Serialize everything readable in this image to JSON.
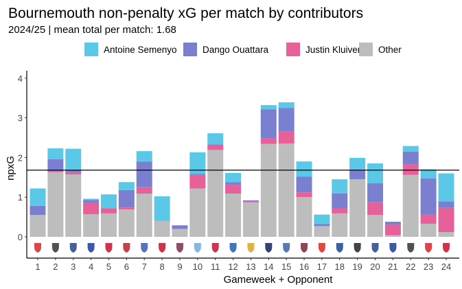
{
  "chart_data": {
    "type": "bar",
    "stacked": true,
    "title": "Bournemouth non-penalty xG per match by contributors",
    "subtitle": "2024/25 | mean total per match: 1.68",
    "xlabel": "Gameweek + Opponent",
    "ylabel": "npxG",
    "ylim": [
      0,
      4.2
    ],
    "yticks": [
      0,
      1,
      2,
      3,
      4
    ],
    "grid": false,
    "legend_position": "top",
    "reference_line": {
      "value": 1.68,
      "color": "#000000"
    },
    "categories": [
      "1",
      "2",
      "3",
      "4",
      "5",
      "6",
      "7",
      "8",
      "9",
      "10",
      "11",
      "12",
      "13",
      "14",
      "15",
      "16",
      "17",
      "18",
      "19",
      "20",
      "21",
      "22",
      "23",
      "24"
    ],
    "opponent_icons": [
      "nottingham-forest-crest-icon",
      "newcastle-crest-icon",
      "everton-crest-icon",
      "chelsea-crest-icon",
      "liverpool-crest-icon",
      "southampton-crest-icon",
      "leicester-crest-icon",
      "arsenal-crest-icon",
      "aston-villa-crest-icon",
      "man-city-crest-icon",
      "brentford-crest-icon",
      "brighton-crest-icon",
      "wolves-crest-icon",
      "tottenham-crest-icon",
      "ipswich-crest-icon",
      "west-ham-crest-icon",
      "man-united-crest-icon",
      "crystal-palace-crest-icon",
      "fulham-crest-icon",
      "everton-crest-icon",
      "chelsea-crest-icon",
      "newcastle-crest-icon",
      "nottingham-forest-crest-icon",
      "liverpool-crest-icon"
    ],
    "opponent_icon_colors": [
      "#d2262f",
      "#333333",
      "#274488",
      "#1c3c94",
      "#c8102e",
      "#b3242a",
      "#3b5bb5",
      "#c8102e",
      "#7a2e4d",
      "#6cabdd",
      "#c8102e",
      "#1d5fb3",
      "#d9a520",
      "#132257",
      "#3a64a3",
      "#7a263a",
      "#da291c",
      "#1b458f",
      "#222222",
      "#274488",
      "#1c3c94",
      "#333333",
      "#d2262f",
      "#c8102e"
    ],
    "series": [
      {
        "name": "Other",
        "color": "#bdbdbd",
        "values": [
          0.55,
          1.63,
          1.57,
          0.57,
          0.59,
          0.69,
          1.09,
          0.4,
          0.2,
          1.22,
          2.19,
          1.09,
          0.87,
          2.34,
          2.35,
          1.0,
          0.27,
          0.59,
          1.45,
          0.55,
          0.04,
          1.56,
          0.33,
          0.12
        ]
      },
      {
        "name": "Justin Kluivert",
        "color": "#e8609a",
        "values": [
          0,
          0.03,
          0.05,
          0.28,
          0.13,
          0.05,
          0.16,
          0,
          0,
          0.34,
          0.12,
          0.21,
          0.03,
          0.15,
          0.3,
          0.12,
          0,
          0.12,
          0,
          0.32,
          0.27,
          0.26,
          0.23,
          0.61
        ]
      },
      {
        "name": "Dango Ouattara",
        "color": "#7b7fd0",
        "values": [
          0.23,
          0.3,
          0.08,
          0.08,
          0,
          0.44,
          0.65,
          0,
          0.09,
          0.03,
          0.02,
          0.08,
          0.02,
          0.72,
          0.6,
          0.4,
          0.05,
          0.38,
          0.25,
          0.48,
          0.07,
          0.33,
          0.91,
          0.16
        ]
      },
      {
        "name": "Antoine Semenyo",
        "color": "#5bc8e8",
        "values": [
          0.44,
          0.27,
          0.52,
          0.03,
          0.35,
          0.2,
          0.26,
          0.62,
          0,
          0.54,
          0.28,
          0.23,
          0,
          0.11,
          0.14,
          0.38,
          0.24,
          0.36,
          0.29,
          0.5,
          0,
          0.14,
          0.23,
          0.71
        ]
      }
    ],
    "legend": [
      "Antoine Semenyo",
      "Dango Ouattara",
      "Justin Kluivert",
      "Other"
    ]
  }
}
